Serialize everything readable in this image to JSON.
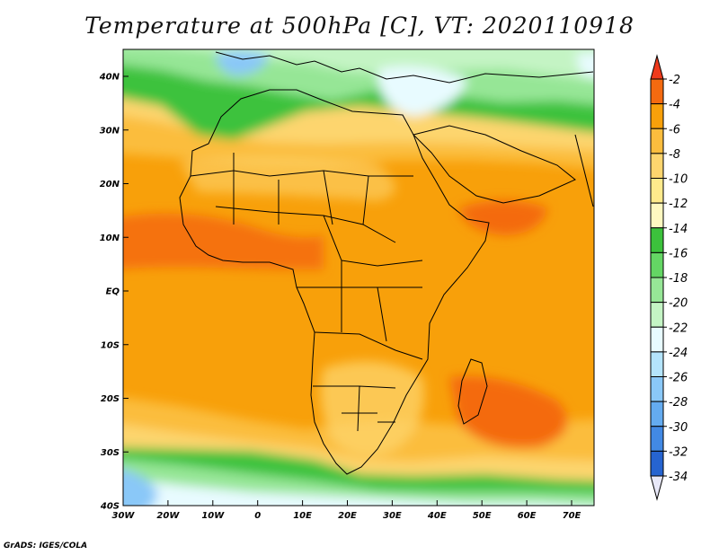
{
  "title": "Temperature at 500hPa [C], VT: 2020110918",
  "credit": "GrADS: IGES/COLA",
  "lat_ticks": [
    "40N",
    "30N",
    "20N",
    "10N",
    "EQ",
    "10S",
    "20S",
    "30S",
    "40S"
  ],
  "lon_ticks": [
    "30W",
    "20W",
    "10W",
    "0",
    "10E",
    "20E",
    "30E",
    "40E",
    "50E",
    "60E",
    "70E"
  ],
  "colorbar": {
    "labels": [
      "-2",
      "-4",
      "-6",
      "-8",
      "-10",
      "-12",
      "-14",
      "-16",
      "-18",
      "-20",
      "-22",
      "-24",
      "-26",
      "-28",
      "-30",
      "-32",
      "-34"
    ],
    "colors": [
      "#ee3a1c",
      "#f46a10",
      "#f8a00a",
      "#fbbd3e",
      "#fdd56e",
      "#feea8c",
      "#fef8c0",
      "#3cc23c",
      "#64d664",
      "#96e696",
      "#c4f4c4",
      "#e8fbff",
      "#b4e4fc",
      "#8ac8f8",
      "#64abf0",
      "#4289e4",
      "#2664d0",
      "#1842b0",
      "#0c2484",
      "#e8e8f8"
    ]
  },
  "field_colors": {
    "orange_dark": "#f46a10",
    "orange": "#f8a00a",
    "orange_light": "#fbbd3e",
    "yellow": "#fdd56e",
    "pale_yellow": "#feea8c",
    "green": "#3cc23c",
    "green_light": "#96e696",
    "green_pale": "#c4f4c4",
    "cyan_pale": "#e8fbff",
    "blue_light": "#8ac8f8"
  }
}
